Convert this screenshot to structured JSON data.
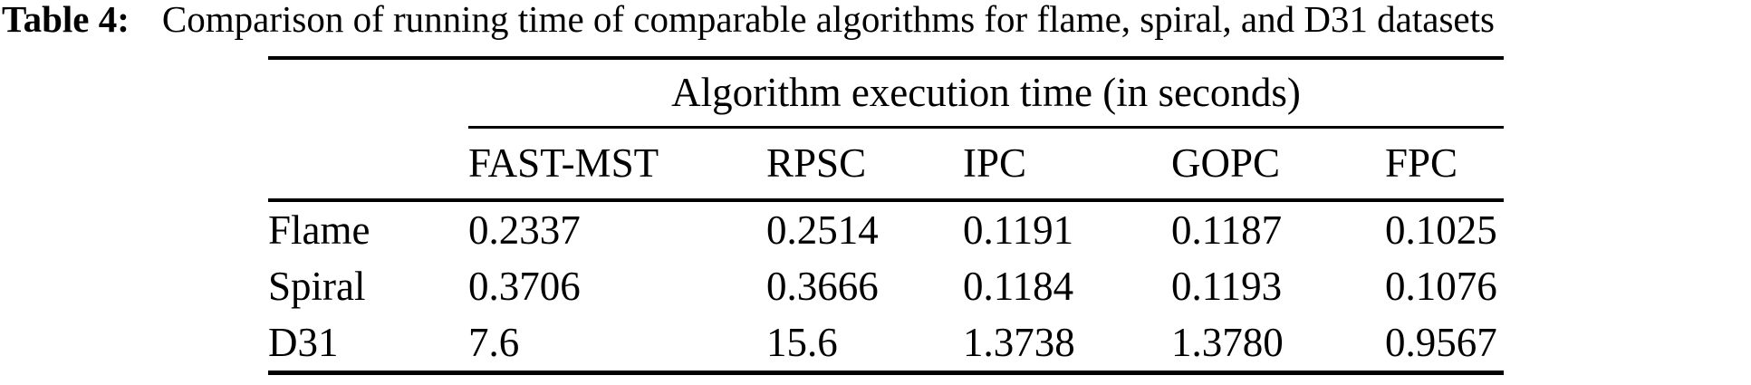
{
  "caption": {
    "label": "Table 4:",
    "text": "Comparison of running time of comparable algorithms for flame, spiral, and D31 datasets"
  },
  "table": {
    "span_header": "Algorithm execution time (in seconds)",
    "columns": [
      "FAST-MST",
      "RPSC",
      "IPC",
      "GOPC",
      "FPC"
    ],
    "rows": [
      {
        "label": "Flame",
        "values": [
          "0.2337",
          "0.2514",
          "0.1191",
          "0.1187",
          "0.1025"
        ]
      },
      {
        "label": "Spiral",
        "values": [
          "0.3706",
          "0.3666",
          "0.1184",
          "0.1193",
          "0.1076"
        ]
      },
      {
        "label": "D31",
        "values": [
          "7.6",
          "15.6",
          "1.3738",
          "1.3780",
          "0.9567"
        ]
      }
    ]
  },
  "colors": {
    "text": "#000000",
    "background": "#ffffff",
    "rule": "#000000"
  }
}
